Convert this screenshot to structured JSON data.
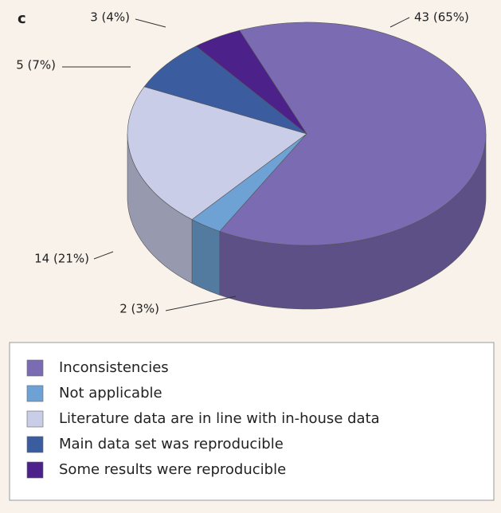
{
  "chart_data": {
    "type": "pie",
    "panel_label": "c",
    "categories": [
      "Inconsistencies",
      "Not applicable",
      "Literature data are in line with in-house data",
      "Main data set was reproducible",
      "Some results were reproducible"
    ],
    "values": [
      43,
      2,
      14,
      5,
      3
    ],
    "value_labels": [
      "43 (65%)",
      "2 (3%)",
      "14 (21%)",
      "5 (7%)",
      "3 (4%)"
    ],
    "colors": [
      "#7b6bb2",
      "#6ea2d4",
      "#c9cde8",
      "#3b5c9e",
      "#4c2189"
    ],
    "legend": "bottom"
  }
}
